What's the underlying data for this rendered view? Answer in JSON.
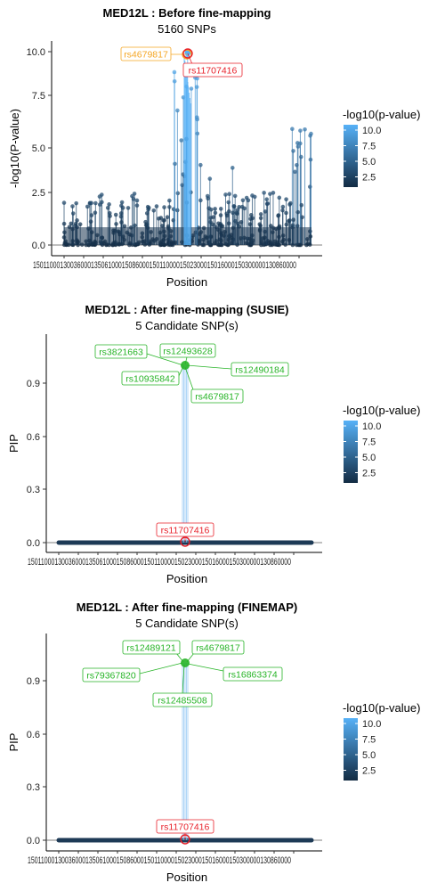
{
  "chart_data": [
    {
      "type": "scatter",
      "title": "MED12L : Before fine-mapping",
      "subtitle": "5160 SNPs",
      "xlabel": "Position",
      "ylabel": "-log10(P-value)",
      "xtick_labels": [
        "150110000",
        "150130000",
        "150150000",
        "150180000",
        "150200000",
        "150220000",
        "150240000",
        "150260000",
        "150280000",
        "150300000",
        "150320000",
        "150340000",
        "150360000"
      ],
      "xtick_display": "15011000130036000135061000150860001501100001502300015016000150300000130860000",
      "ylim": [
        -0.4,
        10.6
      ],
      "yticks": [
        0.0,
        2.5,
        5.0,
        7.5,
        10.0
      ],
      "ytick_labels": [
        "0.0",
        "2.5",
        "5.0",
        "7.5",
        "10.0"
      ],
      "legend": {
        "title": "-log10(p-value)",
        "ticks": [
          "10.0",
          "7.5",
          "5.0",
          "2.5"
        ],
        "low_color": "#132B43",
        "high_color": "#56B1F7",
        "placement": "right"
      },
      "labels": [
        {
          "text": "rs4679817",
          "color": "#F5A623"
        },
        {
          "text": "rs11707416",
          "color": "#E8202A"
        }
      ]
    },
    {
      "type": "scatter",
      "title": "MED12L : After fine-mapping (SUSIE)",
      "subtitle": "5 Candidate SNP(s)",
      "xlabel": "Position",
      "ylabel": "PIP",
      "xtick_display": "15011000130036000135061000150860001501100001502300015016000150300000130860000",
      "ylim": [
        -0.04,
        1.2
      ],
      "yticks": [
        0.0,
        0.3,
        0.6,
        0.9
      ],
      "ytick_labels": [
        "0.0",
        "0.3",
        "0.6",
        "0.9"
      ],
      "legend": {
        "title": "-log10(p-value)",
        "ticks": [
          "10.0",
          "7.5",
          "5.0",
          "2.5"
        ],
        "low_color": "#132B43",
        "high_color": "#56B1F7",
        "placement": "right"
      },
      "labels": [
        {
          "text": "rs3821663",
          "color": "#27B427"
        },
        {
          "text": "rs12493628",
          "color": "#27B427"
        },
        {
          "text": "rs12490184",
          "color": "#27B427"
        },
        {
          "text": "rs10935842",
          "color": "#27B427"
        },
        {
          "text": "rs4679817",
          "color": "#27B427"
        },
        {
          "text": "rs11707416",
          "color": "#E8202A"
        }
      ]
    },
    {
      "type": "scatter",
      "title": "MED12L : After fine-mapping (FINEMAP)",
      "subtitle": "5 Candidate SNP(s)",
      "xlabel": "Position",
      "ylabel": "PIP",
      "xtick_display": "15011000130036000135061000150860001501100001502300015016000150300000130860000",
      "ylim": [
        -0.04,
        1.2
      ],
      "yticks": [
        0.0,
        0.3,
        0.6,
        0.9
      ],
      "ytick_labels": [
        "0.0",
        "0.3",
        "0.6",
        "0.9"
      ],
      "legend": {
        "title": "-log10(p-value)",
        "ticks": [
          "10.0",
          "7.5",
          "5.0",
          "2.5"
        ],
        "low_color": "#132B43",
        "high_color": "#56B1F7",
        "placement": "right"
      },
      "labels": [
        {
          "text": "rs12489121",
          "color": "#27B427"
        },
        {
          "text": "rs4679817",
          "color": "#27B427"
        },
        {
          "text": "rs79367820",
          "color": "#27B427"
        },
        {
          "text": "rs16863374",
          "color": "#27B427"
        },
        {
          "text": "rs12485508",
          "color": "#27B427"
        },
        {
          "text": "rs11707416",
          "color": "#E8202A"
        }
      ]
    }
  ]
}
